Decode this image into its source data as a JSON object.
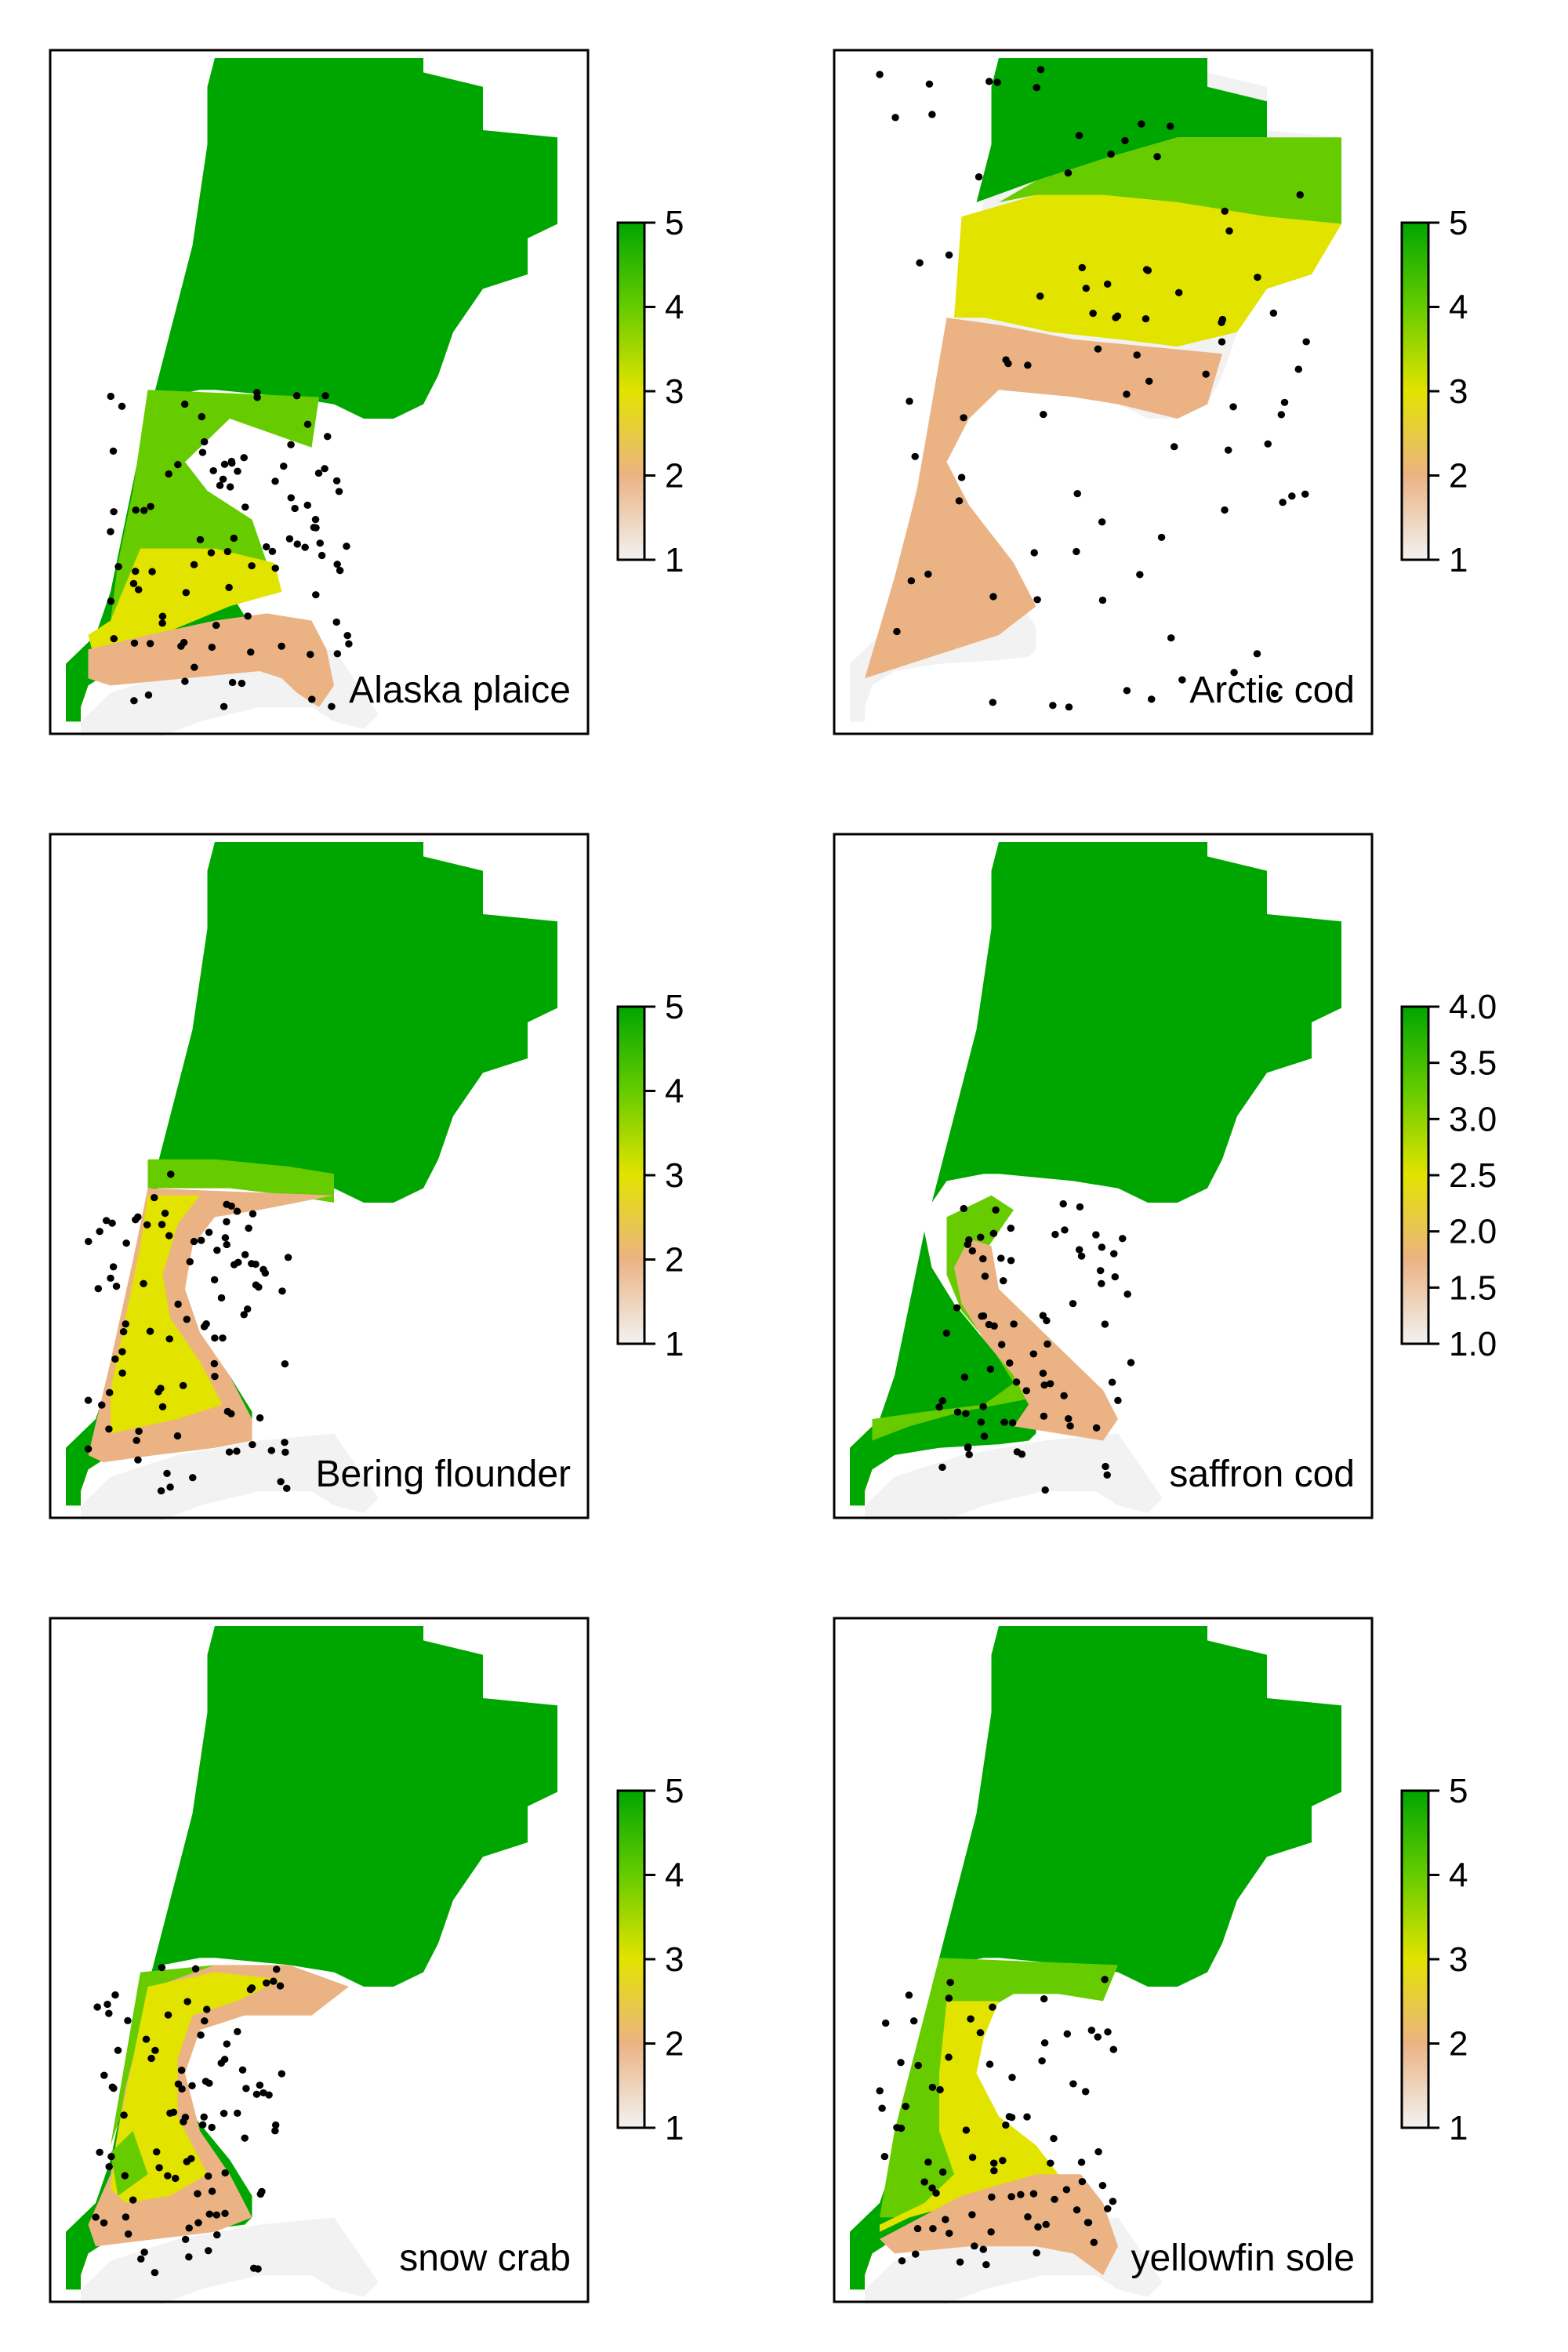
{
  "figure": {
    "panels": [
      {
        "species": "Alaska plaice",
        "legend": {
          "ticks": [
            "5",
            "4",
            "3",
            "2",
            "1"
          ]
        }
      },
      {
        "species": "Arctic cod",
        "legend": {
          "ticks": [
            "5",
            "4",
            "3",
            "2",
            "1"
          ]
        }
      },
      {
        "species": "Bering flounder",
        "legend": {
          "ticks": [
            "5",
            "4",
            "3",
            "2",
            "1"
          ]
        }
      },
      {
        "species": "saffron cod",
        "legend": {
          "ticks": [
            "4.0",
            "3.5",
            "3.0",
            "2.5",
            "2.0",
            "1.5",
            "1.0"
          ]
        }
      },
      {
        "species": "snow crab",
        "legend": {
          "ticks": [
            "5",
            "4",
            "3",
            "2",
            "1"
          ]
        }
      },
      {
        "species": "yellowfin sole",
        "legend": {
          "ticks": [
            "5",
            "4",
            "3",
            "2",
            "1"
          ]
        }
      }
    ]
  },
  "colors": {
    "level_1": "#f2f2f2",
    "level_2": "#ebb383",
    "level_3": "#e3e300",
    "level_4": "#66cc00",
    "level_5": "#00a600",
    "points": "#000000"
  }
}
